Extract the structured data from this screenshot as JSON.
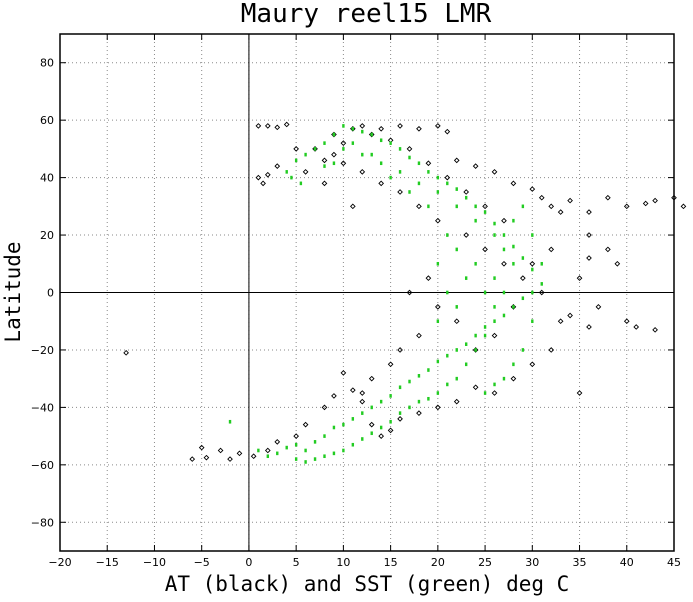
{
  "chart_data": {
    "type": "scatter",
    "title": "Maury reel15 LMR",
    "xlabel": "AT (black) and SST (green) deg C",
    "ylabel": "Latitude",
    "xlim": [
      -20,
      45
    ],
    "ylim": [
      -90,
      90
    ],
    "xticks": [
      -20,
      -15,
      -10,
      -5,
      0,
      5,
      10,
      15,
      20,
      25,
      30,
      35,
      40,
      45
    ],
    "yticks": [
      -80,
      -60,
      -40,
      -20,
      0,
      20,
      40,
      60,
      80
    ],
    "grid": true,
    "reference_lines": {
      "x": 0,
      "y": 0
    },
    "series": [
      {
        "color": "#000000",
        "marker": "open-diamond",
        "points": [
          [
            -13,
            -21
          ],
          [
            -5,
            -54
          ],
          [
            -4.5,
            -57.5
          ],
          [
            -6,
            -58
          ],
          [
            -3,
            -55
          ],
          [
            -2,
            -58
          ],
          [
            -1,
            -56
          ],
          [
            0.5,
            -57
          ],
          [
            1,
            58
          ],
          [
            2,
            58
          ],
          [
            3,
            57.5
          ],
          [
            4,
            58.5
          ],
          [
            1,
            40
          ],
          [
            2,
            41
          ],
          [
            1.5,
            38
          ],
          [
            3,
            44
          ],
          [
            5,
            50
          ],
          [
            6,
            42
          ],
          [
            7,
            50
          ],
          [
            8,
            46
          ],
          [
            9,
            55
          ],
          [
            10,
            52
          ],
          [
            12,
            58
          ],
          [
            14,
            57
          ],
          [
            16,
            58
          ],
          [
            18,
            57
          ],
          [
            20,
            58
          ],
          [
            21,
            56
          ],
          [
            22,
            46
          ],
          [
            24,
            44
          ],
          [
            26,
            42
          ],
          [
            28,
            38
          ],
          [
            30,
            36
          ],
          [
            31,
            33
          ],
          [
            32,
            30
          ],
          [
            33,
            28
          ],
          [
            34,
            32
          ],
          [
            36,
            28
          ],
          [
            38,
            33
          ],
          [
            40,
            30
          ],
          [
            42,
            31
          ],
          [
            43,
            32
          ],
          [
            45,
            33
          ],
          [
            46,
            30
          ],
          [
            36,
            20
          ],
          [
            38,
            15
          ],
          [
            39,
            10
          ],
          [
            36,
            12
          ],
          [
            35,
            5
          ],
          [
            37,
            -5
          ],
          [
            40,
            -10
          ],
          [
            41,
            -12
          ],
          [
            43,
            -13
          ],
          [
            34,
            -8
          ],
          [
            36,
            -12
          ],
          [
            32,
            -20
          ],
          [
            30,
            -25
          ],
          [
            28,
            -30
          ],
          [
            26,
            -35
          ],
          [
            24,
            -33
          ],
          [
            22,
            -38
          ],
          [
            20,
            -40
          ],
          [
            18,
            -42
          ],
          [
            16,
            -44
          ],
          [
            15,
            -48
          ],
          [
            14,
            -50
          ],
          [
            13,
            -46
          ],
          [
            12,
            -38
          ],
          [
            11,
            -34
          ],
          [
            10,
            -28
          ],
          [
            9,
            -36
          ],
          [
            8,
            -40
          ],
          [
            6,
            -46
          ],
          [
            5,
            -50
          ],
          [
            3,
            -52
          ],
          [
            2,
            -55
          ],
          [
            35,
            -35
          ],
          [
            33,
            -10
          ],
          [
            31,
            0
          ],
          [
            29,
            5
          ],
          [
            27,
            10
          ],
          [
            25,
            15
          ],
          [
            23,
            20
          ],
          [
            20,
            25
          ],
          [
            18,
            30
          ],
          [
            16,
            35
          ],
          [
            14,
            38
          ],
          [
            12,
            42
          ],
          [
            10,
            45
          ],
          [
            11,
            30
          ],
          [
            8,
            38
          ],
          [
            22,
            -10
          ],
          [
            20,
            -5
          ],
          [
            19,
            5
          ],
          [
            17,
            0
          ],
          [
            18,
            -15
          ],
          [
            16,
            -20
          ],
          [
            15,
            -25
          ],
          [
            13,
            -30
          ],
          [
            12,
            -35
          ],
          [
            24,
            -20
          ],
          [
            26,
            -15
          ],
          [
            28,
            -5
          ],
          [
            30,
            10
          ],
          [
            32,
            15
          ],
          [
            27,
            25
          ],
          [
            25,
            30
          ],
          [
            23,
            35
          ],
          [
            21,
            40
          ],
          [
            19,
            45
          ],
          [
            17,
            50
          ],
          [
            15,
            53
          ],
          [
            13,
            55
          ],
          [
            11,
            57
          ],
          [
            9,
            48
          ]
        ]
      },
      {
        "color": "#22cc22",
        "marker": "filled-dot",
        "points": [
          [
            -2,
            -45
          ],
          [
            1,
            -55
          ],
          [
            2,
            -57
          ],
          [
            3,
            -56
          ],
          [
            4,
            -54
          ],
          [
            5,
            -53
          ],
          [
            6,
            -55
          ],
          [
            7,
            -52
          ],
          [
            8,
            -50
          ],
          [
            9,
            -47
          ],
          [
            10,
            -46
          ],
          [
            11,
            -44
          ],
          [
            12,
            -42
          ],
          [
            13,
            -40
          ],
          [
            14,
            -38
          ],
          [
            15,
            -36
          ],
          [
            16,
            -33
          ],
          [
            17,
            -31
          ],
          [
            18,
            -29
          ],
          [
            19,
            -27
          ],
          [
            20,
            -24
          ],
          [
            21,
            -22
          ],
          [
            22,
            -20
          ],
          [
            23,
            -18
          ],
          [
            24,
            -15
          ],
          [
            25,
            -12
          ],
          [
            26,
            -10
          ],
          [
            27,
            -8
          ],
          [
            28,
            -5
          ],
          [
            29,
            -2
          ],
          [
            30,
            0
          ],
          [
            31,
            3
          ],
          [
            30,
            8
          ],
          [
            29,
            12
          ],
          [
            28,
            16
          ],
          [
            27,
            20
          ],
          [
            26,
            24
          ],
          [
            25,
            28
          ],
          [
            24,
            30
          ],
          [
            23,
            33
          ],
          [
            22,
            36
          ],
          [
            21,
            38
          ],
          [
            20,
            40
          ],
          [
            19,
            42
          ],
          [
            18,
            45
          ],
          [
            17,
            47
          ],
          [
            16,
            50
          ],
          [
            15,
            52
          ],
          [
            14,
            53
          ],
          [
            13,
            55
          ],
          [
            12,
            56
          ],
          [
            11,
            57
          ],
          [
            10,
            58
          ],
          [
            9,
            55
          ],
          [
            8,
            52
          ],
          [
            7,
            50
          ],
          [
            6,
            48
          ],
          [
            5,
            46
          ],
          [
            4,
            42
          ],
          [
            4.5,
            40
          ],
          [
            5.5,
            38
          ],
          [
            8,
            44
          ],
          [
            10,
            50
          ],
          [
            12,
            48
          ],
          [
            14,
            45
          ],
          [
            16,
            42
          ],
          [
            18,
            38
          ],
          [
            20,
            35
          ],
          [
            22,
            30
          ],
          [
            24,
            25
          ],
          [
            26,
            20
          ],
          [
            28,
            10
          ],
          [
            27,
            0
          ],
          [
            26,
            -5
          ],
          [
            25,
            -15
          ],
          [
            24,
            -20
          ],
          [
            23,
            -25
          ],
          [
            22,
            -30
          ],
          [
            21,
            -32
          ],
          [
            20,
            -35
          ],
          [
            19,
            -37
          ],
          [
            18,
            -38
          ],
          [
            17,
            -40
          ],
          [
            16,
            -42
          ],
          [
            15,
            -45
          ],
          [
            14,
            -47
          ],
          [
            13,
            -49
          ],
          [
            12,
            -51
          ],
          [
            11,
            -53
          ],
          [
            10,
            -55
          ],
          [
            9,
            -56
          ],
          [
            8,
            -57
          ],
          [
            7,
            -58
          ],
          [
            6,
            -59
          ],
          [
            5,
            -58
          ],
          [
            20,
            10
          ],
          [
            21,
            0
          ],
          [
            20,
            -10
          ],
          [
            22,
            15
          ],
          [
            21,
            20
          ],
          [
            22,
            -5
          ],
          [
            23,
            5
          ],
          [
            24,
            10
          ],
          [
            25,
            0
          ],
          [
            26,
            5
          ],
          [
            27,
            15
          ],
          [
            28,
            25
          ],
          [
            29,
            30
          ],
          [
            30,
            20
          ],
          [
            31,
            10
          ],
          [
            30,
            -10
          ],
          [
            29,
            -20
          ],
          [
            28,
            -25
          ],
          [
            27,
            -30
          ],
          [
            26,
            -32
          ],
          [
            25,
            -35
          ],
          [
            15,
            40
          ],
          [
            17,
            35
          ],
          [
            19,
            30
          ],
          [
            13,
            48
          ],
          [
            11,
            52
          ],
          [
            9,
            45
          ]
        ]
      }
    ]
  }
}
